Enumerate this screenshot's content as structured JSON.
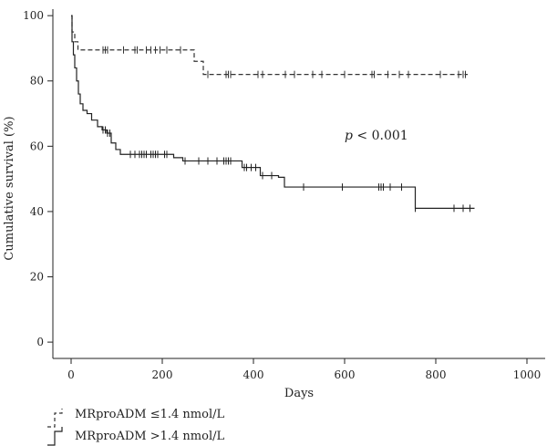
{
  "chart_data": {
    "type": "line",
    "subtype": "kaplan-meier",
    "title": "",
    "xlabel": "Days",
    "ylabel": "Cumulative survival (%)",
    "xlim": [
      -40,
      1040
    ],
    "ylim": [
      -5,
      102
    ],
    "xticks": [
      0,
      200,
      400,
      600,
      800,
      1000
    ],
    "yticks": [
      0,
      20,
      40,
      60,
      80,
      100
    ],
    "grid": false,
    "legend_position": "bottom-left",
    "annotation": {
      "prefix": "p",
      "text": " < 0.001",
      "x": 600,
      "y": 62
    },
    "series": [
      {
        "name": "MRproADM ≤1.4 nmol/L",
        "line_style": "dashed",
        "color": "#333333",
        "steps": [
          [
            0,
            100
          ],
          [
            2,
            95
          ],
          [
            8,
            92
          ],
          [
            15,
            89.5
          ],
          [
            270,
            89.5
          ],
          [
            270,
            86
          ],
          [
            280,
            86
          ],
          [
            290,
            82
          ],
          [
            870,
            82
          ]
        ],
        "censored": [
          70,
          75,
          80,
          115,
          140,
          145,
          165,
          175,
          185,
          195,
          210,
          240,
          300,
          340,
          345,
          350,
          410,
          420,
          470,
          490,
          530,
          550,
          600,
          660,
          665,
          695,
          720,
          740,
          810,
          850,
          860,
          865
        ]
      },
      {
        "name": "MRproADM >1.4 nmol/L",
        "line_style": "solid",
        "color": "#222222",
        "steps": [
          [
            0,
            100
          ],
          [
            2,
            92
          ],
          [
            5,
            88
          ],
          [
            8,
            84
          ],
          [
            12,
            80
          ],
          [
            16,
            76
          ],
          [
            20,
            73
          ],
          [
            26,
            71
          ],
          [
            35,
            70
          ],
          [
            45,
            68
          ],
          [
            58,
            66
          ],
          [
            68,
            65
          ],
          [
            78,
            64
          ],
          [
            88,
            61
          ],
          [
            98,
            59
          ],
          [
            108,
            57.5
          ],
          [
            225,
            57.5
          ],
          [
            225,
            56.5
          ],
          [
            245,
            55.5
          ],
          [
            370,
            55.5
          ],
          [
            375,
            53.5
          ],
          [
            410,
            53.5
          ],
          [
            415,
            51
          ],
          [
            450,
            51
          ],
          [
            455,
            50.5
          ],
          [
            468,
            47.5
          ],
          [
            755,
            47.5
          ],
          [
            755,
            41
          ],
          [
            885,
            41
          ]
        ],
        "censored": [
          70,
          75,
          80,
          85,
          130,
          140,
          150,
          155,
          160,
          165,
          175,
          180,
          185,
          190,
          205,
          210,
          250,
          280,
          300,
          320,
          335,
          340,
          345,
          350,
          380,
          385,
          395,
          405,
          420,
          440,
          510,
          595,
          675,
          680,
          685,
          700,
          725,
          755,
          840,
          860,
          875
        ]
      }
    ]
  }
}
